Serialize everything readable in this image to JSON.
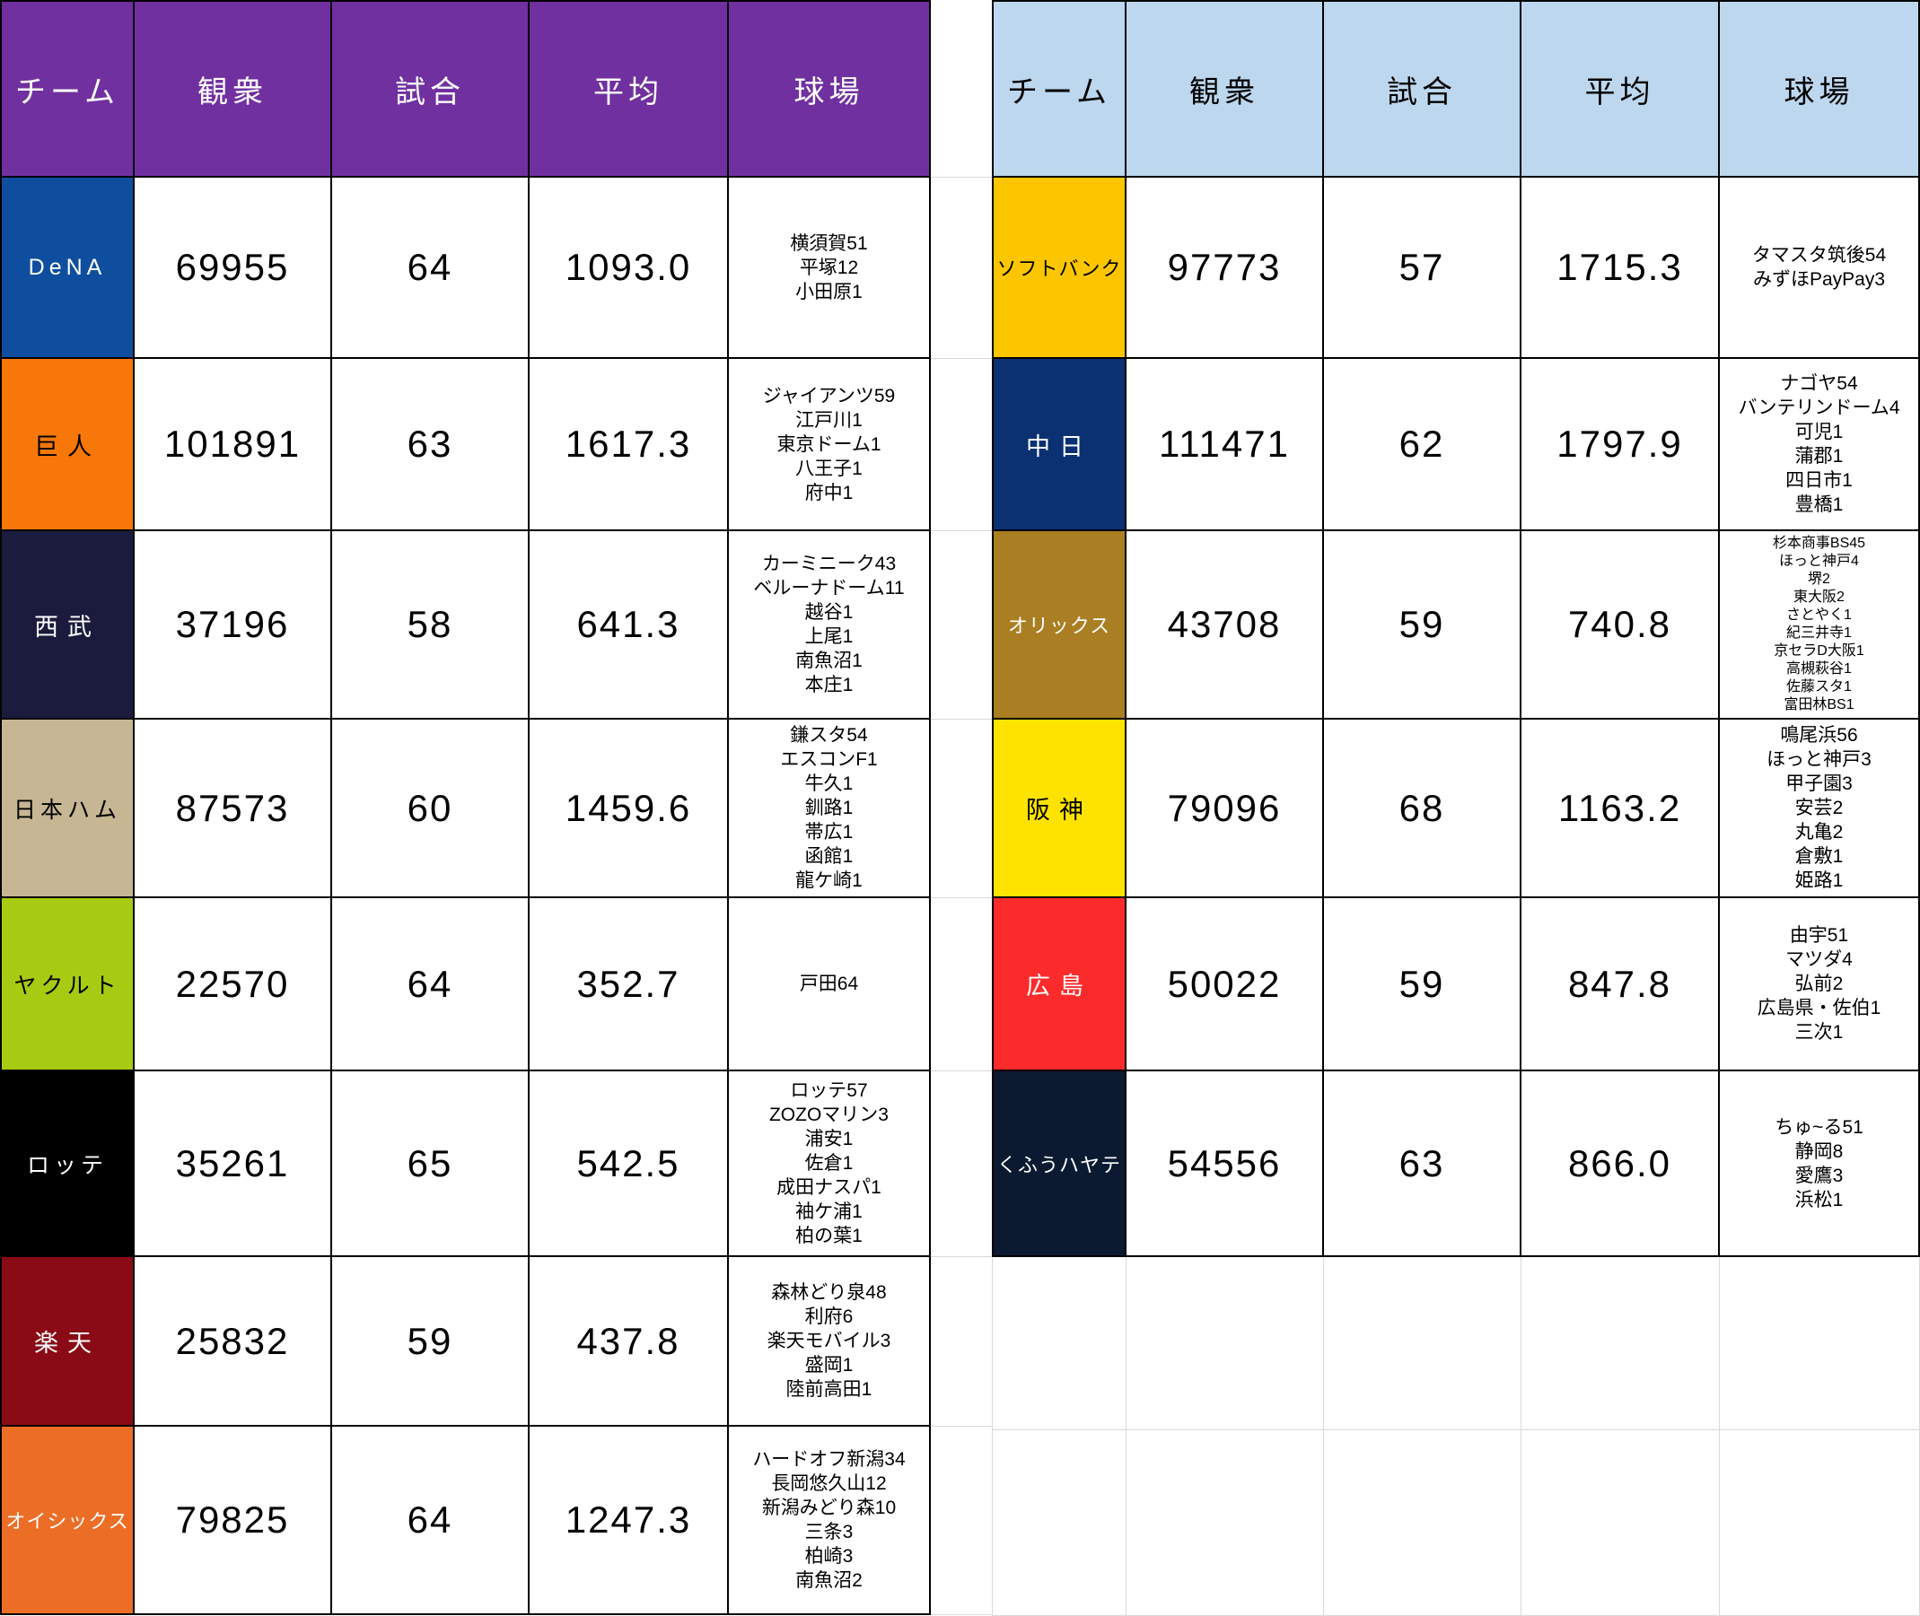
{
  "left_table": {
    "header_bg": "#7030A0",
    "header_text_color": "#FFFFFF",
    "columns": [
      "チーム",
      "観衆",
      "試合",
      "平均",
      "球場"
    ],
    "rows": [
      {
        "team": "DeNA",
        "team_bg": "#0F4E9E",
        "team_color": "#FFFFFF",
        "attendance": "69955",
        "games": "64",
        "average": "1093.0",
        "stadiums": [
          "横須賀51",
          "平塚12",
          "小田原1"
        ]
      },
      {
        "team": "巨人",
        "team_bg": "#F87709",
        "team_color": "#000000",
        "attendance": "101891",
        "games": "63",
        "average": "1617.3",
        "stadiums": [
          "ジャイアンツ59",
          "江戸川1",
          "東京ドーム1",
          "八王子1",
          "府中1"
        ]
      },
      {
        "team": "西武",
        "team_bg": "#1B1B3E",
        "team_color": "#FFFFFF",
        "attendance": "37196",
        "games": "58",
        "average": "641.3",
        "stadiums": [
          "カーミニーク43",
          "ベルーナドーム11",
          "越谷1",
          "上尾1",
          "南魚沼1",
          "本庄1"
        ]
      },
      {
        "team": "日本ハム",
        "team_bg": "#C6B693",
        "team_color": "#000000",
        "attendance": "87573",
        "games": "60",
        "average": "1459.6",
        "stadiums": [
          "鎌スタ54",
          "エスコンF1",
          "牛久1",
          "釧路1",
          "帯広1",
          "函館1",
          "龍ケ崎1"
        ]
      },
      {
        "team": "ヤクルト",
        "team_bg": "#A7CB12",
        "team_color": "#000000",
        "attendance": "22570",
        "games": "64",
        "average": "352.7",
        "stadiums": [
          "戸田64"
        ]
      },
      {
        "team": "ロッテ",
        "team_bg": "#000000",
        "team_color": "#FFFFFF",
        "attendance": "35261",
        "games": "65",
        "average": "542.5",
        "stadiums": [
          "ロッテ57",
          "ZOZOマリン3",
          "浦安1",
          "佐倉1",
          "成田ナスパ1",
          "袖ケ浦1",
          "柏の葉1"
        ]
      },
      {
        "team": "楽天",
        "team_bg": "#8A0A15",
        "team_color": "#FFFFFF",
        "attendance": "25832",
        "games": "59",
        "average": "437.8",
        "stadiums": [
          "森林どり泉48",
          "利府6",
          "楽天モバイル3",
          "盛岡1",
          "陸前高田1"
        ]
      },
      {
        "team": "オイシックス",
        "team_bg": "#EC6D25",
        "team_color": "#FFFFFF",
        "attendance": "79825",
        "games": "64",
        "average": "1247.3",
        "stadiums": [
          "ハードオフ新潟34",
          "長岡悠久山12",
          "新潟みどり森10",
          "三条3",
          "柏崎3",
          "南魚沼2"
        ]
      }
    ]
  },
  "right_table": {
    "header_bg": "#BDD7EE",
    "header_text_color": "#000000",
    "columns": [
      "チーム",
      "観衆",
      "試合",
      "平均",
      "球場"
    ],
    "rows": [
      {
        "team": "ソフトバンク",
        "team_bg": "#FBC600",
        "team_color": "#000000",
        "attendance": "97773",
        "games": "57",
        "average": "1715.3",
        "stadiums": [
          "タマスタ筑後54",
          "みずほPayPay3"
        ]
      },
      {
        "team": "中日",
        "team_bg": "#0B3172",
        "team_color": "#FFFFFF",
        "attendance": "111471",
        "games": "62",
        "average": "1797.9",
        "stadiums": [
          "ナゴヤ54",
          "バンテリンドーム4",
          "可児1",
          "蒲郡1",
          "四日市1",
          "豊橋1"
        ]
      },
      {
        "team": "オリックス",
        "team_bg": "#AA7E22",
        "team_color": "#FFFFFF",
        "attendance": "43708",
        "games": "59",
        "average": "740.8",
        "small_stadium": true,
        "stadiums": [
          "杉本商事BS45",
          "ほっと神戸4",
          "堺2",
          "東大阪2",
          "さとやく1",
          "紀三井寺1",
          "京セラD大阪1",
          "高槻萩谷1",
          "佐藤スタ1",
          "富田林BS1"
        ]
      },
      {
        "team": "阪神",
        "team_bg": "#FFE300",
        "team_color": "#000000",
        "attendance": "79096",
        "games": "68",
        "average": "1163.2",
        "stadiums": [
          "鳴尾浜56",
          "ほっと神戸3",
          "甲子園3",
          "安芸2",
          "丸亀2",
          "倉敷1",
          "姫路1"
        ]
      },
      {
        "team": "広島",
        "team_bg": "#FC2B2B",
        "team_color": "#FFFFFF",
        "attendance": "50022",
        "games": "59",
        "average": "847.8",
        "stadiums": [
          "由宇51",
          "マツダ4",
          "弘前2",
          "広島県・佐伯1",
          "三次1"
        ]
      },
      {
        "team": "くふうハヤテ",
        "team_bg": "#0C1A31",
        "team_color": "#FFFFFF",
        "attendance": "54556",
        "games": "63",
        "average": "866.0",
        "stadiums": [
          "ちゅ~る51",
          "静岡8",
          "愛鷹3",
          "浜松1"
        ]
      }
    ]
  }
}
